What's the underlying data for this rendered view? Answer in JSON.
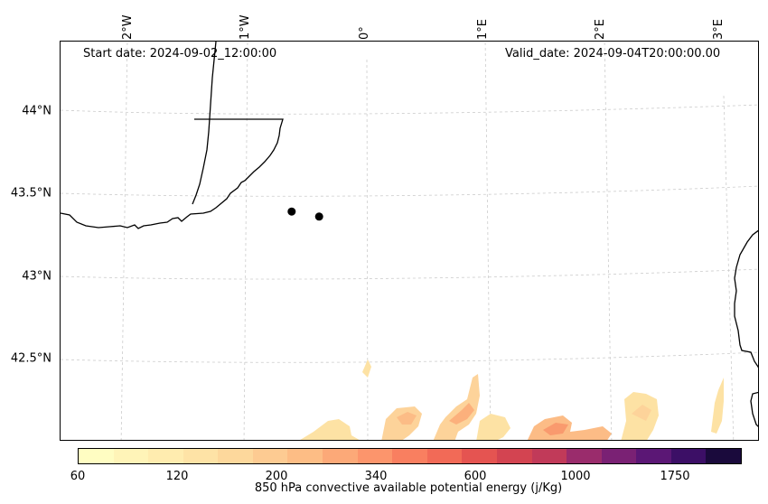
{
  "header": {
    "start_date": "Start date: 2024-09-02_12:00:00",
    "valid_date": "Valid_date: 2024-09-04T20:00:00.00"
  },
  "map": {
    "lon_labels": [
      "2°W",
      "1°W",
      "0°",
      "1°E",
      "2°E",
      "3°E"
    ],
    "lat_labels": [
      "44°N",
      "43.5°N",
      "43°N",
      "42.5°N"
    ],
    "points": [
      {
        "lon": -0.63,
        "lat": 43.39
      },
      {
        "lon": -0.4,
        "lat": 43.36
      }
    ]
  },
  "colorbar": {
    "label": "850 hPa convective available potential energy (j/Kg)",
    "tick_labels": [
      "60",
      "120",
      "200",
      "340",
      "600",
      "1000",
      "1750"
    ],
    "colors": [
      "#fffdc2",
      "#fff4b8",
      "#ffecaf",
      "#fee3a6",
      "#fdd89c",
      "#fdcb92",
      "#fdbd85",
      "#fca978",
      "#fc956c",
      "#f97f60",
      "#f26a57",
      "#e55451",
      "#d34451",
      "#c13a59",
      "#9a2c6c",
      "#7a2174",
      "#5b1775",
      "#3c0f66",
      "#1a0a3c"
    ]
  }
}
